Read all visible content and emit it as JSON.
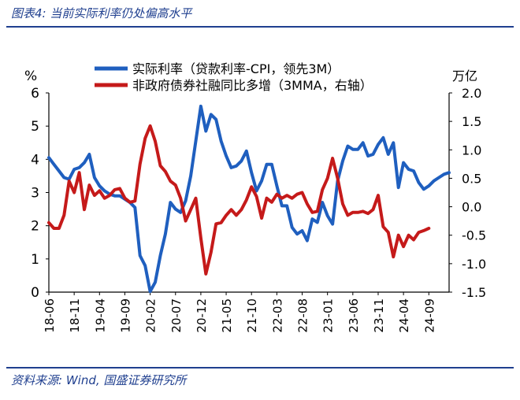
{
  "figure": {
    "title": "图表4:  当前实际利率仍处偏高水平",
    "source": "资料来源:  Wind,  国盛证券研究所"
  },
  "colors": {
    "real_rate": "#1f5fbf",
    "tsf_gov": "#c51a1a",
    "header_rule": "#1f3f8f"
  },
  "chart_data": {
    "type": "line",
    "left_axis": {
      "unit": "%",
      "ylim": [
        0,
        6
      ],
      "ticks": [
        "0",
        "1",
        "2",
        "3",
        "4",
        "5",
        "6"
      ]
    },
    "right_axis": {
      "unit": "万亿",
      "ylim": [
        -1.5,
        2.0
      ],
      "ticks": [
        "-1.5",
        "-1.0",
        "-0.5",
        "0.0",
        "0.5",
        "1.0",
        "1.5",
        "2.0"
      ]
    },
    "x_range": [
      "18-06",
      "25-01"
    ],
    "x_ticks": [
      "18-06",
      "18-11",
      "19-04",
      "19-09",
      "20-02",
      "20-07",
      "20-12",
      "21-05",
      "21-10",
      "22-03",
      "22-08",
      "23-01",
      "23-06",
      "23-11",
      "24-04",
      "24-09"
    ],
    "legend": {
      "placement": "top"
    },
    "grid": false,
    "series": [
      {
        "name": "实际利率（贷款利率-CPI，领先3M）",
        "axis": "left",
        "color": "#1f5fbf",
        "start": "18-06",
        "values": [
          4.05,
          3.85,
          3.65,
          3.45,
          3.4,
          3.7,
          3.75,
          3.9,
          4.15,
          3.45,
          3.2,
          3.05,
          2.95,
          2.9,
          2.9,
          2.8,
          2.7,
          2.55,
          1.1,
          0.8,
          0.02,
          0.3,
          1.1,
          1.75,
          2.7,
          2.5,
          2.4,
          2.75,
          3.5,
          4.55,
          5.6,
          4.85,
          5.35,
          5.2,
          4.55,
          4.1,
          3.75,
          3.8,
          3.95,
          4.25,
          3.6,
          3.05,
          3.35,
          3.85,
          3.85,
          3.2,
          2.6,
          2.6,
          1.95,
          1.75,
          1.85,
          1.55,
          2.2,
          2.1,
          2.7,
          2.3,
          2.05,
          3.35,
          3.95,
          4.4,
          4.3,
          4.3,
          4.5,
          4.1,
          4.15,
          4.45,
          4.65,
          4.15,
          4.5,
          3.15,
          3.9,
          3.7,
          3.65,
          3.3,
          3.1,
          3.2,
          3.35,
          3.45,
          3.55,
          3.6
        ]
      },
      {
        "name": "非政府债券社融同比多增（3MMA，右轴）",
        "axis": "right",
        "color": "#c51a1a",
        "start": "18-06",
        "values": [
          -0.28,
          -0.38,
          -0.38,
          -0.15,
          0.45,
          0.25,
          0.6,
          -0.05,
          0.38,
          0.2,
          0.28,
          0.15,
          0.2,
          0.3,
          0.32,
          0.15,
          0.08,
          0.1,
          0.75,
          1.2,
          1.42,
          1.15,
          0.72,
          0.62,
          0.45,
          0.38,
          0.15,
          -0.25,
          -0.05,
          0.15,
          -0.55,
          -1.18,
          -0.8,
          -0.3,
          -0.28,
          -0.15,
          -0.05,
          -0.15,
          -0.05,
          0.12,
          0.35,
          0.18,
          -0.2,
          0.15,
          0.08,
          0.22,
          0.15,
          0.2,
          0.15,
          0.22,
          0.25,
          0.05,
          -0.1,
          -0.08,
          0.3,
          0.5,
          0.85,
          0.5,
          0.05,
          -0.15,
          -0.1,
          -0.1,
          -0.08,
          -0.12,
          -0.05,
          0.2,
          -0.35,
          -0.45,
          -0.88,
          -0.5,
          -0.7,
          -0.5,
          -0.58,
          -0.45,
          -0.42,
          -0.38
        ]
      }
    ]
  }
}
